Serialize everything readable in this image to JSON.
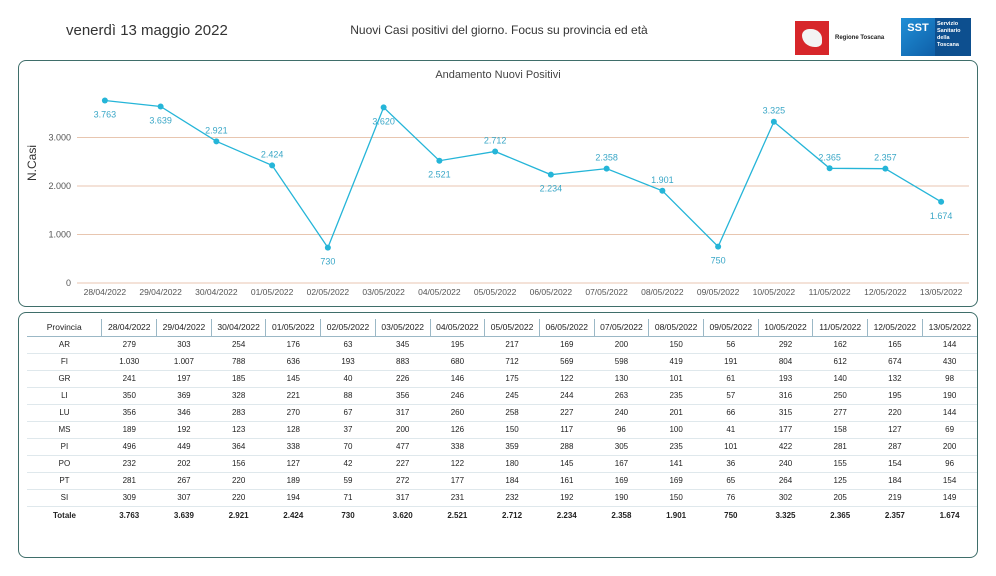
{
  "header": {
    "date": "venerdì 13 maggio 2022",
    "subtitle": "Nuovi Casi positivi del giorno. Focus su provincia ed età",
    "logo_region_text": "Regione Toscana",
    "logo_sst_short": "SST",
    "logo_sst_text": "Servizio Sanitario della Toscana"
  },
  "colors": {
    "line": "#25b5d8",
    "grid": "#e8c6b0",
    "panel_border": "#3f6e6a"
  },
  "chart_data": {
    "type": "line",
    "title": "Andamento Nuovi Positivi",
    "ylabel": "N.Casi",
    "xlabel": "",
    "ylim": [
      0,
      4000
    ],
    "yticks": [
      0,
      1000,
      2000,
      3000
    ],
    "ytick_labels": [
      "0",
      "1.000",
      "2.000",
      "3.000"
    ],
    "x": [
      "28/04/2022",
      "29/04/2022",
      "30/04/2022",
      "01/05/2022",
      "02/05/2022",
      "03/05/2022",
      "04/05/2022",
      "05/05/2022",
      "06/05/2022",
      "07/05/2022",
      "08/05/2022",
      "09/05/2022",
      "10/05/2022",
      "11/05/2022",
      "12/05/2022",
      "13/05/2022"
    ],
    "values": [
      3763,
      3639,
      2921,
      2424,
      730,
      3620,
      2521,
      2712,
      2234,
      2358,
      1901,
      750,
      3325,
      2365,
      2357,
      1674
    ],
    "value_labels": [
      "3.763",
      "3.639",
      "2.921",
      "2.424",
      "730",
      "3.620",
      "2.521",
      "2.712",
      "2.234",
      "2.358",
      "1.901",
      "750",
      "3.325",
      "2.365",
      "2.357",
      "1.674"
    ]
  },
  "table": {
    "header_label": "Provincia",
    "columns": [
      "28/04/2022",
      "29/04/2022",
      "30/04/2022",
      "01/05/2022",
      "02/05/2022",
      "03/05/2022",
      "04/05/2022",
      "05/05/2022",
      "06/05/2022",
      "07/05/2022",
      "08/05/2022",
      "09/05/2022",
      "10/05/2022",
      "11/05/2022",
      "12/05/2022",
      "13/05/2022"
    ],
    "rows": [
      {
        "province": "AR",
        "values": [
          "279",
          "303",
          "254",
          "176",
          "63",
          "345",
          "195",
          "217",
          "169",
          "200",
          "150",
          "56",
          "292",
          "162",
          "165",
          "144"
        ]
      },
      {
        "province": "FI",
        "values": [
          "1.030",
          "1.007",
          "788",
          "636",
          "193",
          "883",
          "680",
          "712",
          "569",
          "598",
          "419",
          "191",
          "804",
          "612",
          "674",
          "430"
        ]
      },
      {
        "province": "GR",
        "values": [
          "241",
          "197",
          "185",
          "145",
          "40",
          "226",
          "146",
          "175",
          "122",
          "130",
          "101",
          "61",
          "193",
          "140",
          "132",
          "98"
        ]
      },
      {
        "province": "LI",
        "values": [
          "350",
          "369",
          "328",
          "221",
          "88",
          "356",
          "246",
          "245",
          "244",
          "263",
          "235",
          "57",
          "316",
          "250",
          "195",
          "190"
        ]
      },
      {
        "province": "LU",
        "values": [
          "356",
          "346",
          "283",
          "270",
          "67",
          "317",
          "260",
          "258",
          "227",
          "240",
          "201",
          "66",
          "315",
          "277",
          "220",
          "144"
        ]
      },
      {
        "province": "MS",
        "values": [
          "189",
          "192",
          "123",
          "128",
          "37",
          "200",
          "126",
          "150",
          "117",
          "96",
          "100",
          "41",
          "177",
          "158",
          "127",
          "69"
        ]
      },
      {
        "province": "PI",
        "values": [
          "496",
          "449",
          "364",
          "338",
          "70",
          "477",
          "338",
          "359",
          "288",
          "305",
          "235",
          "101",
          "422",
          "281",
          "287",
          "200"
        ]
      },
      {
        "province": "PO",
        "values": [
          "232",
          "202",
          "156",
          "127",
          "42",
          "227",
          "122",
          "180",
          "145",
          "167",
          "141",
          "36",
          "240",
          "155",
          "154",
          "96"
        ]
      },
      {
        "province": "PT",
        "values": [
          "281",
          "267",
          "220",
          "189",
          "59",
          "272",
          "177",
          "184",
          "161",
          "169",
          "169",
          "65",
          "264",
          "125",
          "184",
          "154"
        ]
      },
      {
        "province": "SI",
        "values": [
          "309",
          "307",
          "220",
          "194",
          "71",
          "317",
          "231",
          "232",
          "192",
          "190",
          "150",
          "76",
          "302",
          "205",
          "219",
          "149"
        ]
      }
    ],
    "total": {
      "province": "Totale",
      "values": [
        "3.763",
        "3.639",
        "2.921",
        "2.424",
        "730",
        "3.620",
        "2.521",
        "2.712",
        "2.234",
        "2.358",
        "1.901",
        "750",
        "3.325",
        "2.365",
        "2.357",
        "1.674"
      ]
    }
  }
}
